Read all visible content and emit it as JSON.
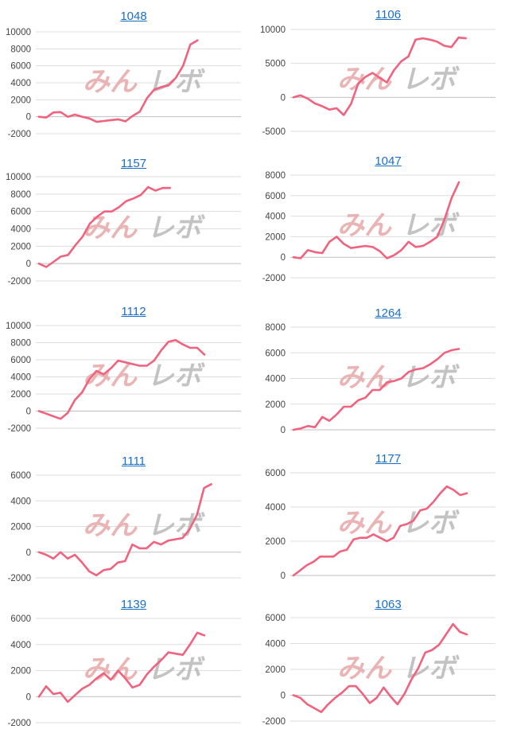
{
  "style": {
    "line_color": "#f0637f",
    "title_color": "#1a6fc9",
    "grid_color": "#dddddd",
    "watermark_color": "#e8a7a7",
    "watermark_gray": "#b9b9b9"
  },
  "watermark": {
    "left": "みん",
    "right": "レボ"
  },
  "chart_data": [
    {
      "type": "line",
      "title": "1048",
      "ylim": [
        -2000,
        10000
      ],
      "yticks": [
        -2000,
        0,
        2000,
        4000,
        6000,
        8000,
        10000
      ],
      "yticklabels": [
        "-2000",
        "0",
        "2000",
        "4000",
        "6000",
        "8000",
        "10000"
      ],
      "values": [
        0,
        -100,
        500,
        550,
        0,
        250,
        0,
        -200,
        -600,
        -500,
        -400,
        -300,
        -550,
        100,
        600,
        2200,
        3200,
        3500,
        3700,
        4600,
        6000,
        8500,
        9000
      ]
    },
    {
      "type": "line",
      "title": "1106",
      "ylim": [
        -5000,
        10000
      ],
      "yticks": [
        -5000,
        0,
        5000,
        10000
      ],
      "yticklabels": [
        "-5000",
        "0",
        "5000",
        "10000"
      ],
      "values": [
        0,
        300,
        -200,
        -900,
        -1300,
        -1800,
        -1600,
        -2600,
        -1000,
        2000,
        3000,
        3600,
        2900,
        2200,
        4000,
        5300,
        6000,
        8500,
        8700,
        8500,
        8200,
        7600,
        7400,
        8800,
        8700
      ]
    },
    {
      "type": "line",
      "title": "1157",
      "ylim": [
        -2000,
        10000
      ],
      "yticks": [
        -2000,
        0,
        2000,
        4000,
        6000,
        8000,
        10000
      ],
      "yticklabels": [
        "-2000",
        "0",
        "2000",
        "4000",
        "6000",
        "8000",
        "10000"
      ],
      "values": [
        0,
        -400,
        200,
        800,
        1000,
        2100,
        3100,
        4600,
        5400,
        6000,
        6000,
        6500,
        7200,
        7500,
        7900,
        8800,
        8400,
        8700,
        8700
      ]
    },
    {
      "type": "line",
      "title": "1047",
      "ylim": [
        -2000,
        8000
      ],
      "yticks": [
        -2000,
        0,
        2000,
        4000,
        6000,
        8000
      ],
      "yticklabels": [
        "-2000",
        "0",
        "2000",
        "4000",
        "6000",
        "8000"
      ],
      "values": [
        0,
        -100,
        700,
        500,
        400,
        1500,
        2000,
        1300,
        900,
        1000,
        1100,
        1000,
        600,
        -100,
        200,
        700,
        1500,
        1000,
        1100,
        1500,
        2000,
        3700,
        5800,
        7300
      ]
    },
    {
      "type": "line",
      "title": "1112",
      "ylim": [
        -2000,
        10000
      ],
      "yticks": [
        -2000,
        0,
        2000,
        4000,
        6000,
        8000,
        10000
      ],
      "yticklabels": [
        "-2000",
        "0",
        "2000",
        "4000",
        "6000",
        "8000",
        "10000"
      ],
      "values": [
        0,
        -300,
        -600,
        -900,
        -200,
        1300,
        2200,
        3700,
        4700,
        4300,
        5000,
        5900,
        5700,
        5500,
        5300,
        5300,
        5900,
        7100,
        8100,
        8300,
        7800,
        7400,
        7400,
        6600
      ]
    },
    {
      "type": "line",
      "title": "1264",
      "ylim": [
        0,
        8000
      ],
      "yticks": [
        0,
        2000,
        4000,
        6000,
        8000
      ],
      "yticklabels": [
        "0",
        "2000",
        "4000",
        "6000",
        "8000"
      ],
      "values": [
        0,
        100,
        300,
        200,
        1000,
        700,
        1200,
        1800,
        1800,
        2300,
        2500,
        3100,
        3100,
        3700,
        3800,
        4000,
        4500,
        4700,
        4800,
        5100,
        5500,
        6000,
        6200,
        6300
      ]
    },
    {
      "type": "line",
      "title": "1111",
      "ylim": [
        -2000,
        6000
      ],
      "yticks": [
        -2000,
        0,
        2000,
        4000,
        6000
      ],
      "yticklabels": [
        "-2000",
        "0",
        "2000",
        "4000",
        "6000"
      ],
      "values": [
        0,
        -200,
        -500,
        0,
        -500,
        -200,
        -800,
        -1500,
        -1800,
        -1400,
        -1300,
        -800,
        -700,
        600,
        300,
        300,
        800,
        600,
        900,
        1000,
        1100,
        1800,
        2900,
        5000,
        5300
      ]
    },
    {
      "type": "line",
      "title": "1177",
      "ylim": [
        0,
        6000
      ],
      "yticks": [
        0,
        2000,
        4000,
        6000
      ],
      "yticklabels": [
        "0",
        "2000",
        "4000",
        "6000"
      ],
      "values": [
        0,
        300,
        600,
        800,
        1100,
        1100,
        1100,
        1400,
        1500,
        2100,
        2200,
        2200,
        2400,
        2200,
        2000,
        2200,
        2900,
        3000,
        3200,
        3800,
        3900,
        4300,
        4800,
        5200,
        5000,
        4700,
        4800
      ]
    },
    {
      "type": "line",
      "title": "1139",
      "ylim": [
        -2000,
        6000
      ],
      "yticks": [
        -2000,
        0,
        2000,
        4000,
        6000
      ],
      "yticklabels": [
        "-2000",
        "0",
        "2000",
        "4000",
        "6000"
      ],
      "values": [
        0,
        800,
        200,
        300,
        -400,
        100,
        600,
        900,
        1400,
        1800,
        1300,
        2000,
        1400,
        700,
        900,
        1700,
        2300,
        2800,
        3400,
        3300,
        3200,
        4000,
        4900,
        4700
      ]
    },
    {
      "type": "line",
      "title": "1063",
      "ylim": [
        -2000,
        6000
      ],
      "yticks": [
        -2000,
        0,
        2000,
        4000,
        6000
      ],
      "yticklabels": [
        "-2000",
        "0",
        "2000",
        "4000",
        "6000"
      ],
      "values": [
        0,
        -200,
        -700,
        -1000,
        -1300,
        -700,
        -200,
        200,
        700,
        700,
        100,
        -600,
        -200,
        600,
        -100,
        -700,
        100,
        1200,
        2100,
        3300,
        3500,
        3900,
        4700,
        5500,
        4900,
        4700
      ]
    }
  ]
}
